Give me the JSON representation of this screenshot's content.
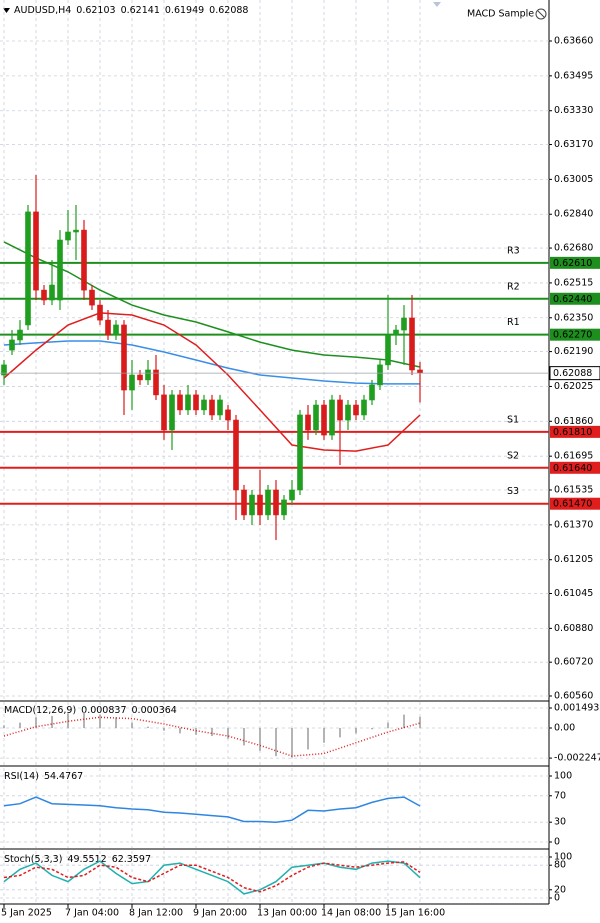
{
  "chart_data": [
    {
      "type": "candlestick",
      "title": "AUDUSD,H4",
      "expert": "MACD Sample",
      "categories": [
        "5 Jan 2025",
        null,
        null,
        null,
        null,
        null,
        null,
        null,
        "7 Jan 04:00",
        null,
        null,
        null,
        null,
        null,
        null,
        null,
        "8 Jan 12:00",
        null,
        null,
        null,
        null,
        null,
        null,
        null,
        "9 Jan 20:00",
        null,
        null,
        null,
        null,
        null,
        null,
        null,
        "13 Jan 00:00",
        null,
        null,
        null,
        null,
        null,
        null,
        null,
        "14 Jan 08:00",
        null,
        null,
        null,
        null,
        null,
        null,
        null,
        "15 Jan 16:00",
        null,
        null,
        null,
        null
      ],
      "open": [
        0.62079,
        0.62197,
        0.62245,
        0.62316,
        0.62851,
        0.62481,
        0.62434,
        0.62434,
        0.62718,
        0.62756,
        0.62765,
        0.62481,
        0.6241,
        0.62339,
        0.62268,
        0.62316,
        0.62008,
        0.62079,
        0.62056,
        0.62103,
        0.61985,
        0.61819,
        0.61985,
        0.61914,
        0.61985,
        0.61914,
        0.61961,
        0.6189,
        0.61914,
        0.61866,
        0.61535,
        0.61417,
        0.61511,
        0.61417,
        0.61535,
        0.61417,
        0.61488,
        0.61535,
        0.6189,
        0.61819,
        0.61937,
        0.61795,
        0.61961,
        0.61866,
        0.61937,
        0.6189,
        0.61961,
        0.62032,
        0.62127,
        0.62268,
        0.62292,
        0.62349,
        0.62103
      ],
      "high": [
        0.6215,
        0.62292,
        0.62339,
        0.62884,
        0.63026,
        0.62505,
        0.62623,
        0.62765,
        0.6286,
        0.62884,
        0.62813,
        0.62505,
        0.62434,
        0.62387,
        0.62339,
        0.62339,
        0.6215,
        0.62103,
        0.6215,
        0.62174,
        0.62032,
        0.62008,
        0.62008,
        0.62032,
        0.62008,
        0.61985,
        0.61985,
        0.61985,
        0.61937,
        0.6189,
        0.61559,
        0.61535,
        0.6163,
        0.61559,
        0.61582,
        0.61511,
        0.61582,
        0.61914,
        0.61937,
        0.61961,
        0.61961,
        0.61985,
        0.61985,
        0.61961,
        0.61961,
        0.61985,
        0.62056,
        0.6215,
        0.62458,
        0.62316,
        0.6241,
        0.62458,
        0.62141
      ],
      "low": [
        0.62032,
        0.62174,
        0.62221,
        0.62292,
        0.62434,
        0.6241,
        0.6241,
        0.62387,
        0.62694,
        0.62623,
        0.62434,
        0.62387,
        0.62316,
        0.62245,
        0.62245,
        0.6189,
        0.61914,
        0.62032,
        0.62032,
        0.61961,
        0.61772,
        0.61724,
        0.6189,
        0.6189,
        0.6189,
        0.6189,
        0.61866,
        0.61866,
        0.61819,
        0.61393,
        0.61393,
        0.61369,
        0.61369,
        0.61393,
        0.61298,
        0.61393,
        0.61464,
        0.61511,
        0.61772,
        0.61795,
        0.61772,
        0.61772,
        0.61653,
        0.61819,
        0.61866,
        0.61866,
        0.61937,
        0.62008,
        0.62103,
        0.62221,
        0.62127,
        0.62079,
        0.61949
      ],
      "close": [
        0.62127,
        0.62245,
        0.62292,
        0.62851,
        0.62481,
        0.62434,
        0.62505,
        0.62718,
        0.62756,
        0.62765,
        0.62481,
        0.6241,
        0.62339,
        0.62268,
        0.62316,
        0.62008,
        0.62079,
        0.62056,
        0.62103,
        0.61985,
        0.61819,
        0.61985,
        0.61914,
        0.61985,
        0.61914,
        0.61961,
        0.6189,
        0.61961,
        0.61866,
        0.61535,
        0.61417,
        0.61511,
        0.61417,
        0.61535,
        0.61417,
        0.61488,
        0.61535,
        0.6189,
        0.61819,
        0.61937,
        0.61795,
        0.61961,
        0.61866,
        0.61937,
        0.6189,
        0.61961,
        0.62032,
        0.62127,
        0.62268,
        0.62292,
        0.62349,
        0.62103,
        0.62088
      ],
      "up_color": "#1f9e1f",
      "down_color": "#d81b1b",
      "ylim": [
        0.60541,
        0.63854
      ],
      "yticks": [
        {
          "value": 0.6366,
          "label": "0.63660"
        },
        0.63495,
        {
          "value": 0.6333,
          "label": "0.63330"
        },
        {
          "value": 0.6317,
          "label": "0.63170"
        },
        0.63005,
        {
          "value": 0.6284,
          "label": "0.62840"
        },
        {
          "value": 0.6268,
          "label": "0.62680"
        },
        0.62515,
        {
          "value": 0.6235,
          "label": "0.62350"
        },
        {
          "value": 0.6219,
          "label": "0.62190"
        },
        0.62025,
        {
          "value": 0.6186,
          "label": "0.61860"
        },
        0.61695,
        0.61535,
        {
          "value": 0.6137,
          "label": "0.61370"
        },
        0.61205,
        0.61045,
        {
          "value": 0.6088,
          "label": "0.60880"
        },
        {
          "value": 0.6072,
          "label": "0.60720"
        },
        {
          "value": 0.6056,
          "label": "0.60560"
        }
      ],
      "grid": true,
      "overlays": [
        {
          "color": "#1e8f1e",
          "x": [
            0,
            4,
            8,
            12,
            16,
            20,
            24,
            28,
            32,
            36,
            40,
            44,
            48,
            52
          ],
          "values": [
            0.62709,
            0.62633,
            0.62567,
            0.62481,
            0.6241,
            0.62363,
            0.6233,
            0.62283,
            0.62235,
            0.62197,
            0.62174,
            0.62164,
            0.6215,
            0.62117
          ]
        },
        {
          "color": "#3a8ee6",
          "x": [
            0,
            4,
            8,
            12,
            16,
            20,
            24,
            28,
            32,
            36,
            40,
            44,
            48,
            52
          ],
          "values": [
            0.62221,
            0.62231,
            0.6224,
            0.6224,
            0.62221,
            0.62188,
            0.6215,
            0.62112,
            0.62079,
            0.62065,
            0.62051,
            0.62041,
            0.62037,
            0.62037
          ]
        },
        {
          "color": "#e01e1e",
          "x": [
            0,
            4,
            8,
            12,
            16,
            20,
            24,
            28,
            32,
            36,
            40,
            44,
            48,
            52
          ],
          "values": [
            0.62065,
            0.62197,
            0.62316,
            0.62373,
            0.62363,
            0.62316,
            0.62221,
            0.62079,
            0.61914,
            0.61748,
            0.61724,
            0.61719,
            0.61748,
            0.6189
          ]
        }
      ],
      "levels": [
        {
          "name": "R3",
          "value": 0.6261,
          "label": "0.62610",
          "color": "#1e8f1e"
        },
        {
          "name": "R2",
          "value": 0.6244,
          "label": "0.62440",
          "color": "#1e8f1e"
        },
        {
          "name": "R1",
          "value": 0.6227,
          "label": "0.62270",
          "color": "#1e8f1e"
        },
        {
          "name": "S1",
          "value": 0.6181,
          "label": "0.61810",
          "color": "#e01e1e"
        },
        {
          "name": "S2",
          "value": 0.6164,
          "label": "0.61640",
          "color": "#e01e1e"
        },
        {
          "name": "S3",
          "value": 0.6147,
          "label": "0.61470",
          "color": "#e01e1e"
        }
      ]
    },
    {
      "type": "macd",
      "title": "MACD(12,26,9)",
      "ylim": [
        -0.002762,
        0.001941
      ],
      "yticks": [
        0.001493,
        {
          "value": 0,
          "label": "0.00"
        },
        -0.002247
      ],
      "grid": true,
      "series": [
        {
          "kind": "histogram",
          "color": "#9a9a9a",
          "x": [
            0,
            2,
            4,
            6,
            8,
            10,
            12,
            14,
            16,
            18,
            20,
            22,
            24,
            26,
            28,
            30,
            32,
            34,
            36,
            38,
            40,
            42,
            44,
            46,
            48,
            50,
            52
          ],
          "values": [
            0.0002,
            0.0004,
            0.0008,
            0.0009,
            0.0011,
            0.0012,
            0.001,
            0.0008,
            0.0004,
            0.0001,
            -0.0002,
            -0.0004,
            -0.0005,
            -0.0006,
            -0.0008,
            -0.0013,
            -0.0017,
            -0.0021,
            -0.0022,
            -0.0016,
            -0.0011,
            -0.0007,
            -0.0004,
            -0.0001,
            0.0004,
            0.001,
            0.000837
          ]
        },
        {
          "kind": "line",
          "dash": "dotted",
          "color": "#e01e1e",
          "x": [
            0,
            4,
            8,
            12,
            16,
            20,
            24,
            28,
            32,
            36,
            40,
            44,
            48,
            52
          ],
          "values": [
            -0.0006,
            0.0001,
            0.0005,
            0.0008,
            0.0007,
            0.0003,
            -0.0002,
            -0.0006,
            -0.0013,
            -0.0021,
            -0.0019,
            -0.0011,
            -0.0003,
            0.000364
          ]
        }
      ]
    },
    {
      "type": "line",
      "title": "RSI(14)",
      "ylim": [
        -9.1,
        112.1
      ],
      "yticks": [
        100,
        70,
        30,
        0
      ],
      "grid": true,
      "series": [
        {
          "color": "#2f86e0",
          "x": [
            0,
            2,
            4,
            6,
            8,
            10,
            12,
            14,
            16,
            18,
            20,
            22,
            24,
            26,
            28,
            30,
            32,
            34,
            36,
            38,
            40,
            42,
            44,
            46,
            48,
            50,
            52
          ],
          "values": [
            55,
            58,
            68,
            58,
            57,
            56,
            55,
            52,
            50,
            49,
            45,
            44,
            42,
            40,
            38,
            31,
            31,
            30,
            33,
            48,
            47,
            50,
            52,
            60,
            66,
            68,
            54.4767
          ]
        }
      ]
    },
    {
      "type": "line",
      "title": "Stoch(5,3,3)",
      "ylim": [
        -12.2,
        114.6
      ],
      "yticks": [
        100,
        80,
        20,
        0
      ],
      "grid": true,
      "series": [
        {
          "color": "#1fb0b0",
          "x": [
            0,
            2,
            4,
            6,
            8,
            10,
            12,
            14,
            16,
            18,
            20,
            22,
            24,
            26,
            28,
            30,
            32,
            34,
            36,
            38,
            40,
            42,
            44,
            46,
            48,
            50,
            52
          ],
          "values": [
            40,
            70,
            85,
            55,
            40,
            70,
            90,
            60,
            35,
            40,
            80,
            85,
            70,
            55,
            40,
            10,
            20,
            40,
            75,
            80,
            85,
            75,
            70,
            85,
            90,
            85,
            49.5512
          ]
        },
        {
          "color": "#e01e1e",
          "dash": "dashed",
          "x": [
            0,
            2,
            4,
            6,
            8,
            10,
            12,
            14,
            16,
            18,
            20,
            22,
            24,
            26,
            28,
            30,
            32,
            34,
            36,
            38,
            40,
            42,
            44,
            46,
            48,
            50,
            52
          ],
          "values": [
            50,
            55,
            75,
            70,
            50,
            55,
            80,
            75,
            50,
            40,
            60,
            80,
            80,
            65,
            50,
            25,
            15,
            30,
            55,
            75,
            85,
            80,
            75,
            80,
            85,
            88,
            62.3597
          ]
        }
      ]
    }
  ]
}
